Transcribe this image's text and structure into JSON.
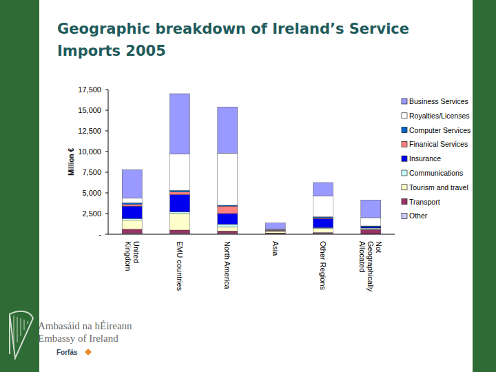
{
  "chart_data": {
    "type": "bar",
    "stacked": true,
    "legend": "right",
    "title": "Geographic breakdown of Ireland’s Service Imports 2005",
    "y_label": "Million €",
    "categories": [
      "United Kingdom",
      "EMU countries",
      "North America",
      "Asia",
      "Other Regions",
      "Not Geographically Allocated"
    ],
    "ylim": [
      0,
      17500
    ],
    "yticks": [
      {
        "value": 0,
        "label": "-"
      },
      {
        "value": 2500,
        "label": "2,500"
      },
      {
        "value": 5000,
        "label": "5,000"
      },
      {
        "value": 7500,
        "label": "7,500"
      },
      {
        "value": 10000,
        "label": "10,000"
      },
      {
        "value": 12500,
        "label": "12,500"
      },
      {
        "value": 15000,
        "label": "15,000"
      },
      {
        "value": 17500,
        "label": "17,500"
      }
    ],
    "series": [
      {
        "name": "Business Services",
        "color": "#9999ff",
        "values": [
          3400,
          7300,
          5600,
          700,
          1650,
          2150
        ]
      },
      {
        "name": "Royalties/Licenses",
        "color": "#ffffff",
        "values": [
          600,
          4400,
          6300,
          100,
          2500,
          1000
        ]
      },
      {
        "name": "Computer Services",
        "color": "#0066cc",
        "values": [
          200,
          200,
          100,
          50,
          100,
          100
        ]
      },
      {
        "name": "Finanical Services",
        "color": "#ff8080",
        "values": [
          200,
          300,
          900,
          50,
          100,
          50
        ]
      },
      {
        "name": "Insurance",
        "color": "#0000ee",
        "values": [
          1500,
          2100,
          1300,
          50,
          1100,
          100
        ]
      },
      {
        "name": "Communications",
        "color": "#ccffff",
        "values": [
          200,
          200,
          300,
          50,
          100,
          100
        ]
      },
      {
        "name": "Tourism and travel",
        "color": "#ffffcc",
        "values": [
          1100,
          2000,
          500,
          200,
          500,
          100
        ]
      },
      {
        "name": "Transport",
        "color": "#993366",
        "values": [
          500,
          400,
          300,
          100,
          100,
          500
        ]
      },
      {
        "name": "Other",
        "color": "#ccccff",
        "values": [
          100,
          100,
          100,
          50,
          100,
          50
        ]
      }
    ]
  },
  "footer": {
    "lines": [
      "Ambasáid na hÉireann",
      "Embassy of Ireland"
    ],
    "brand": "Forfás"
  }
}
